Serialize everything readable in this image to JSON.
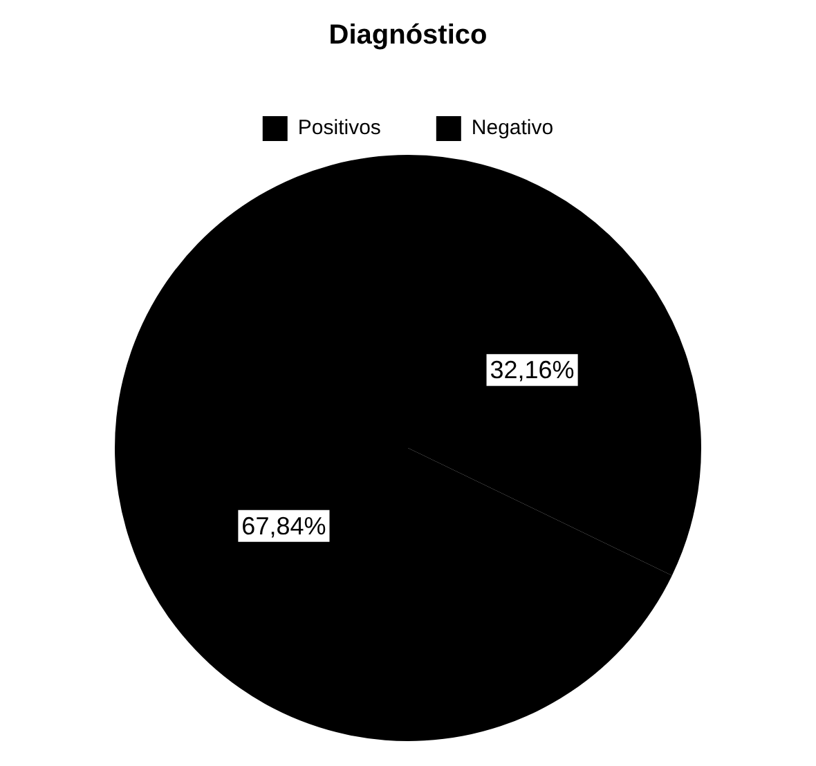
{
  "chart_data": {
    "type": "pie",
    "title": "Diagnóstico",
    "categories": [
      "Positivos",
      "Negativo"
    ],
    "values": [
      67.84,
      32.16
    ],
    "colors": [
      "#000000",
      "#000000"
    ],
    "value_labels": [
      "67,84%",
      "32,16%"
    ],
    "legend": "top"
  }
}
